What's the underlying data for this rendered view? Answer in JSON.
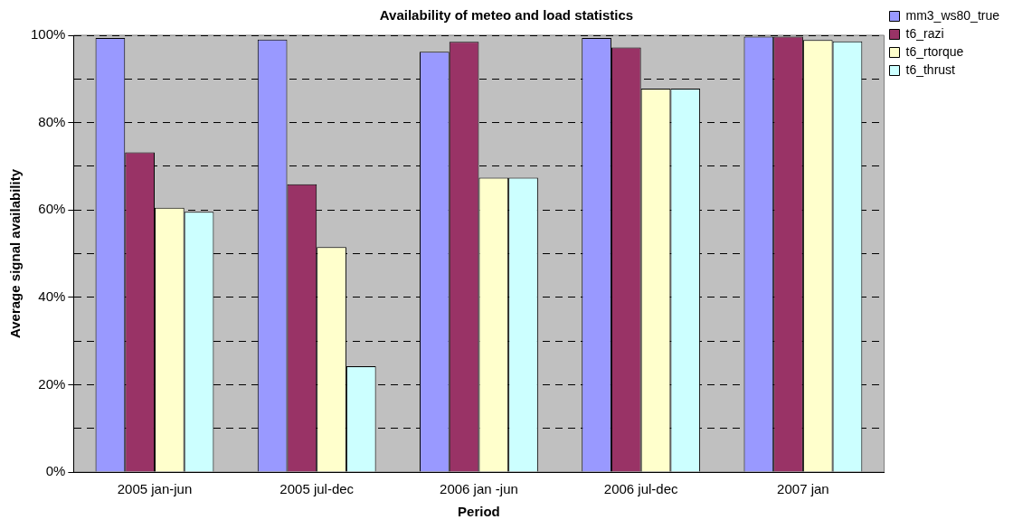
{
  "chart_data": {
    "type": "bar",
    "title": "Availability of meteo and load statistics",
    "xlabel": "Period",
    "ylabel": "Average signal availability",
    "categories": [
      "2005 jan-jun",
      "2005 jul-dec",
      "2006 jan -jun",
      "2006 jul-dec",
      "2007 jan"
    ],
    "series": [
      {
        "name": "mm3_ws80_true",
        "color": "#9999ff",
        "values": [
          99.4,
          99.0,
          96.2,
          99.4,
          99.7
        ]
      },
      {
        "name": "t6_razi",
        "color": "#993366",
        "values": [
          73.2,
          65.9,
          98.5,
          97.2,
          99.7
        ]
      },
      {
        "name": "t6_rtorque",
        "color": "#ffffcc",
        "values": [
          60.5,
          51.5,
          67.4,
          87.8,
          98.9
        ]
      },
      {
        "name": "t6_thrust",
        "color": "#ccffff",
        "values": [
          59.6,
          24.2,
          67.4,
          87.8,
          98.6
        ]
      }
    ],
    "ylim": [
      0,
      100
    ],
    "yticks": [
      {
        "value": 0,
        "label": "0%"
      },
      {
        "value": 10,
        "label": null
      },
      {
        "value": 20,
        "label": "20%"
      },
      {
        "value": 30,
        "label": null
      },
      {
        "value": 40,
        "label": "40%"
      },
      {
        "value": 50,
        "label": null
      },
      {
        "value": 60,
        "label": "60%"
      },
      {
        "value": 70,
        "label": null
      },
      {
        "value": 80,
        "label": "80%"
      },
      {
        "value": 90,
        "label": null
      },
      {
        "value": 100,
        "label": "100%"
      }
    ],
    "grid": "y",
    "legend": "top right"
  }
}
